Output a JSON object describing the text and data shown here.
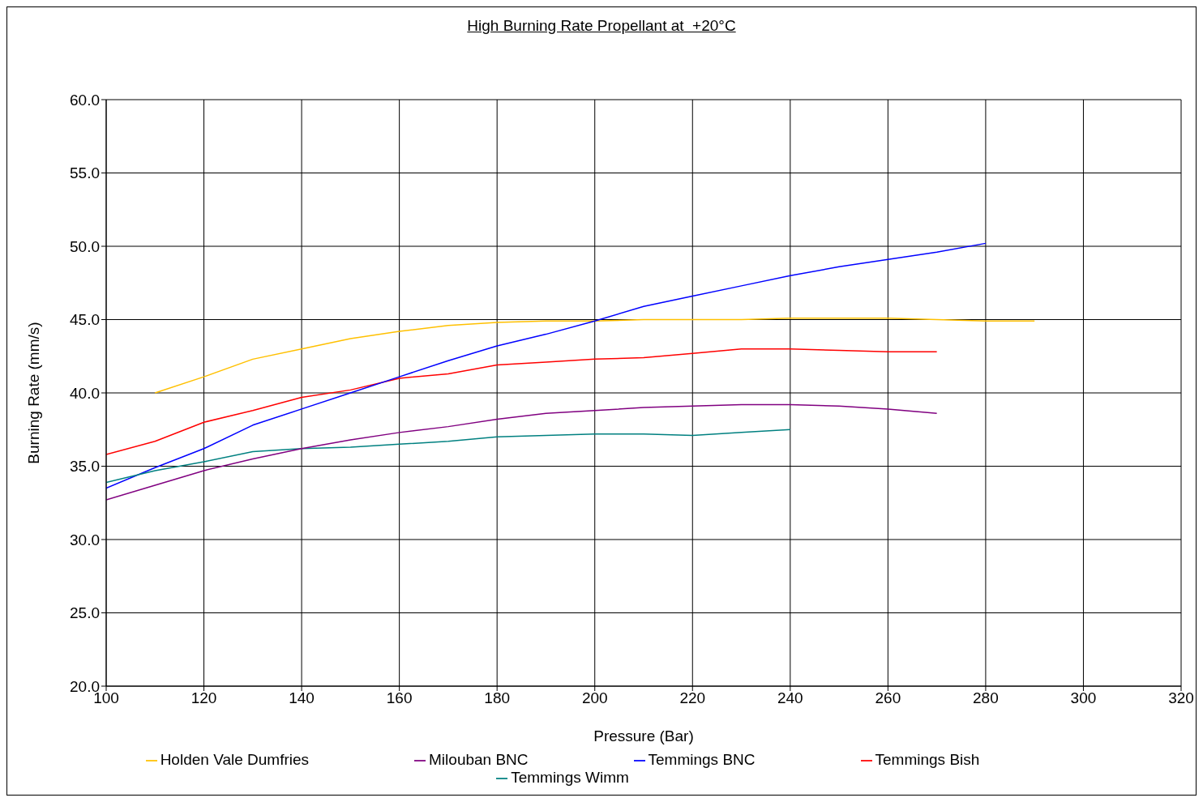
{
  "chart_data": {
    "type": "line",
    "title": "High Burning Rate Propellant at  +20°C",
    "xlabel": "Pressure (Bar)",
    "ylabel": "Burning Rate (mm/s)",
    "xlim": [
      100,
      320
    ],
    "xticks": [
      100,
      120,
      140,
      160,
      180,
      200,
      220,
      240,
      260,
      280,
      300,
      320
    ],
    "ylim": [
      20,
      60
    ],
    "yticks": [
      {
        "value": 20,
        "label": "20.0"
      },
      {
        "value": 25,
        "label": "25.0"
      },
      {
        "value": 30,
        "label": "30.0"
      },
      {
        "value": 35,
        "label": "35.0"
      },
      {
        "value": 40,
        "label": "40.0"
      },
      {
        "value": 45,
        "label": "45.0"
      },
      {
        "value": 50,
        "label": "50.0"
      },
      {
        "value": 55,
        "label": "55.0"
      },
      {
        "value": 60,
        "label": "60.0"
      }
    ],
    "grid": true,
    "legend": "bottom",
    "marker": "none",
    "line_style": "solid",
    "series": [
      {
        "name": "Temmings Bish",
        "color": "#ff0000",
        "x": [
          100,
          110,
          120,
          130,
          140,
          150,
          160,
          170,
          180,
          190,
          200,
          210,
          220,
          230,
          240,
          250,
          260,
          270
        ],
        "values": [
          35.8,
          36.7,
          38.0,
          38.8,
          39.7,
          40.2,
          41.0,
          41.3,
          41.9,
          42.1,
          42.3,
          42.4,
          42.7,
          43.0,
          43.0,
          42.9,
          42.8,
          42.8
        ]
      },
      {
        "name": "Holden Vale Dumfries",
        "color": "#ffc000",
        "x": [
          110,
          120,
          130,
          140,
          150,
          160,
          170,
          180,
          190,
          200,
          210,
          220,
          230,
          240,
          250,
          260,
          270,
          280,
          290
        ],
        "values": [
          40.0,
          41.1,
          42.3,
          43.0,
          43.7,
          44.2,
          44.6,
          44.8,
          44.9,
          44.9,
          45.0,
          45.0,
          45.0,
          45.1,
          45.1,
          45.1,
          45.0,
          44.9,
          44.9
        ]
      },
      {
        "name": "Temmings BNC",
        "color": "#0000ff",
        "x": [
          100,
          110,
          120,
          130,
          140,
          150,
          160,
          170,
          180,
          190,
          200,
          210,
          220,
          230,
          240,
          250,
          260,
          270,
          280
        ],
        "values": [
          33.5,
          34.9,
          36.2,
          37.8,
          38.9,
          40.0,
          41.1,
          42.2,
          43.2,
          44.0,
          44.9,
          45.9,
          46.6,
          47.3,
          48.0,
          48.6,
          49.1,
          49.6,
          50.2
        ]
      },
      {
        "name": "Temmings Wimm",
        "color": "#008080",
        "x": [
          100,
          110,
          120,
          130,
          140,
          150,
          160,
          170,
          180,
          190,
          200,
          210,
          220,
          230,
          240
        ],
        "values": [
          33.9,
          34.7,
          35.3,
          36.0,
          36.2,
          36.3,
          36.5,
          36.7,
          37.0,
          37.1,
          37.2,
          37.2,
          37.1,
          37.3,
          37.5
        ]
      },
      {
        "name": "Milouban BNC",
        "color": "#800080",
        "x": [
          100,
          110,
          120,
          130,
          140,
          150,
          160,
          170,
          180,
          190,
          200,
          210,
          220,
          230,
          240,
          250,
          260,
          270
        ],
        "values": [
          32.7,
          33.7,
          34.7,
          35.5,
          36.2,
          36.8,
          37.3,
          37.7,
          38.2,
          38.6,
          38.8,
          39.0,
          39.1,
          39.2,
          39.2,
          39.1,
          38.9,
          38.6
        ]
      }
    ]
  }
}
